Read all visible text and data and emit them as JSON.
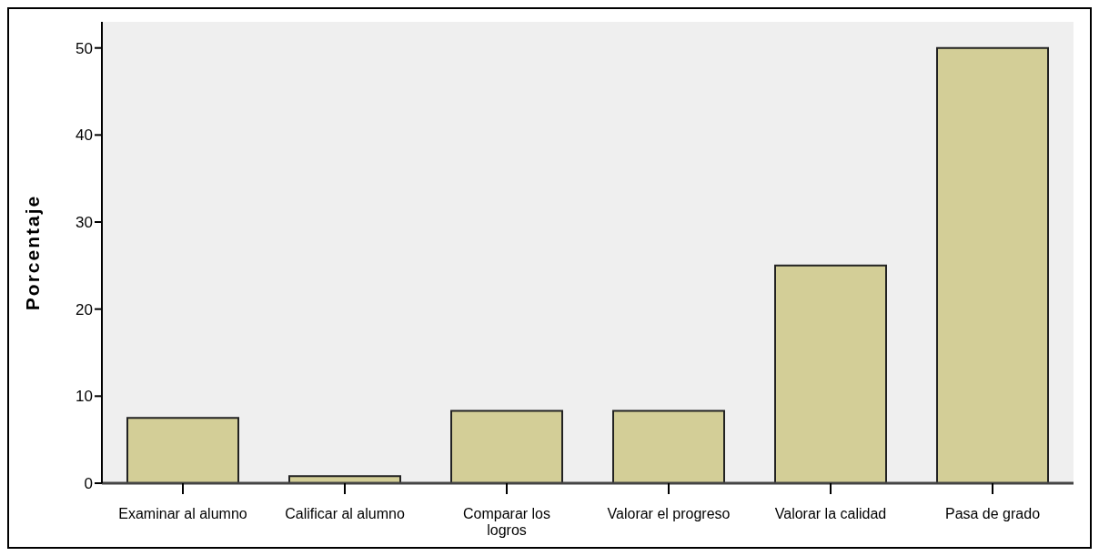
{
  "chart_data": {
    "type": "bar",
    "ylabel": "Porcentaje",
    "categories": [
      "Examinar al alumno",
      "Calificar al alumno",
      "Comparar los logros",
      "Valorar el progreso",
      "Valorar la calidad",
      "Pasa de grado"
    ],
    "values": [
      7.5,
      0.8,
      8.3,
      8.3,
      25,
      50
    ],
    "color": "#d3ce97",
    "ylim": [
      0,
      53
    ],
    "yticks": [
      0,
      10,
      20,
      30,
      40,
      50
    ],
    "grid": false,
    "legend": false
  }
}
